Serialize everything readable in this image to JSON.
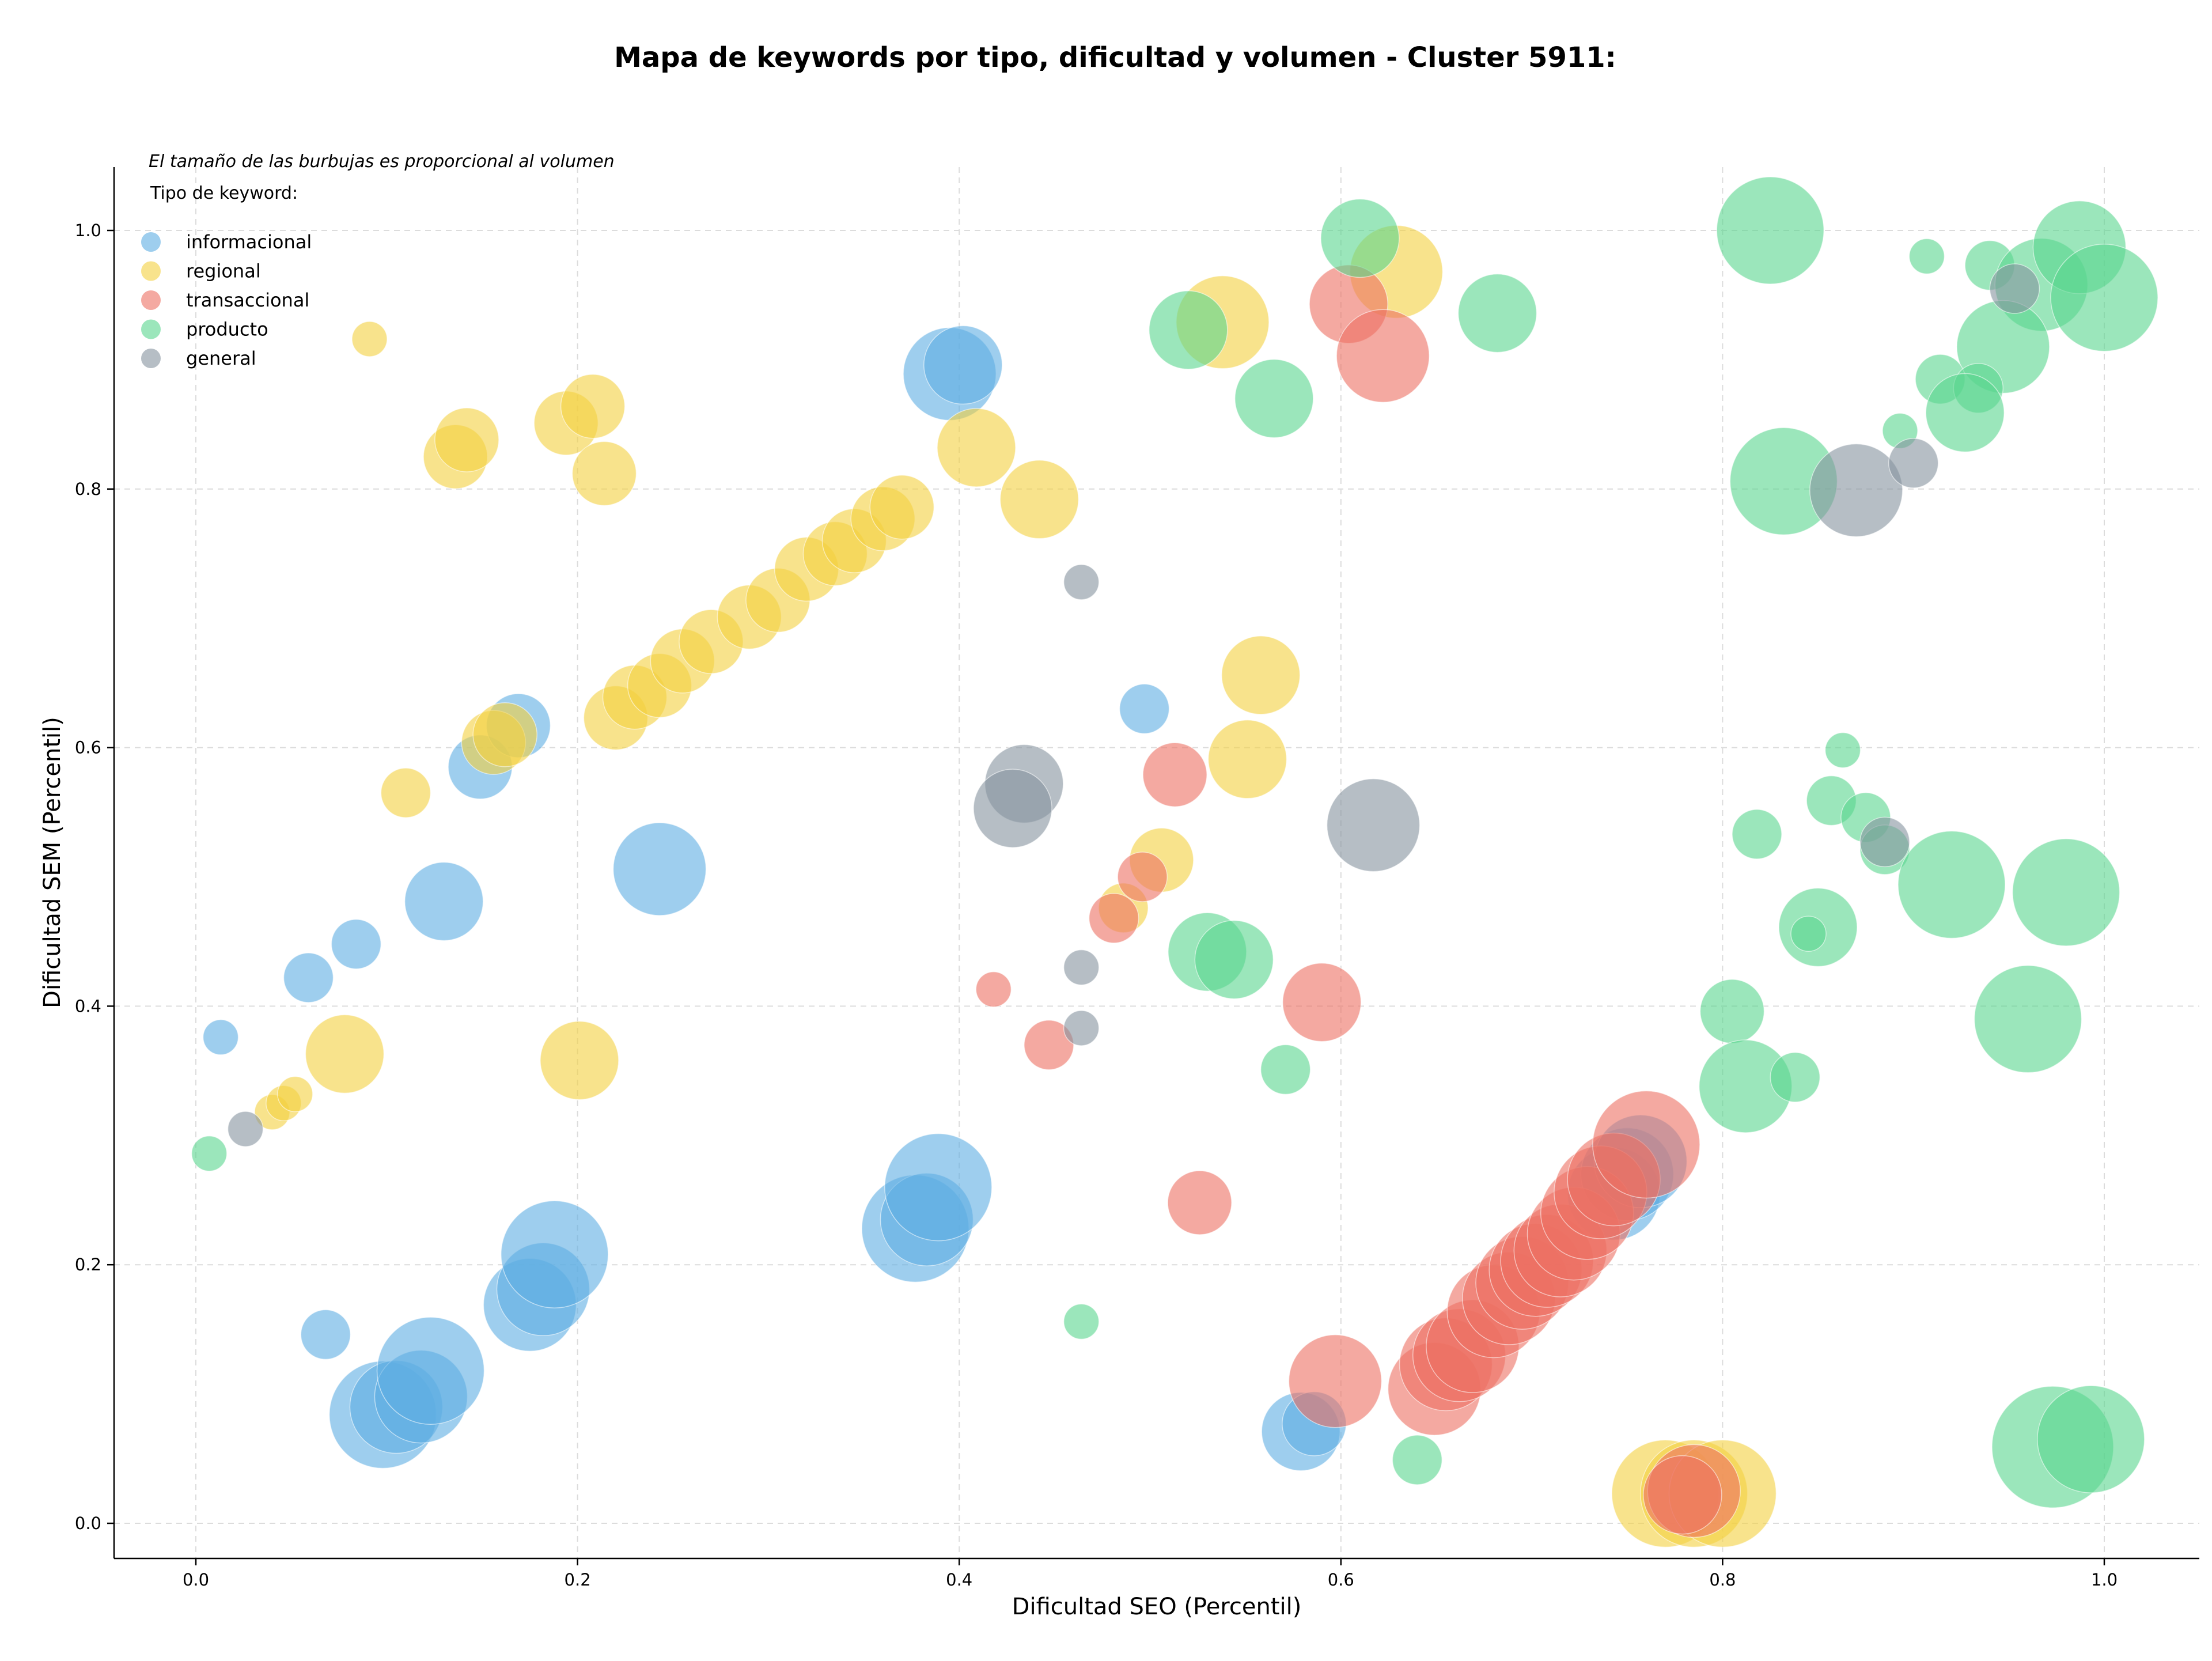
{
  "chart_data": {
    "type": "scatter",
    "title": "Mapa de keywords por tipo, dificultad y volumen - Cluster 5911:",
    "xlabel": "Dificultad SEO (Percentil)",
    "ylabel": "Dificultad SEM (Percentil)",
    "xlim": [
      -0.04,
      1.05
    ],
    "ylim": [
      -0.025,
      1.05
    ],
    "xticks": [
      0.0,
      0.2,
      0.4,
      0.6,
      0.8,
      1.0
    ],
    "xtick_labels": [
      "0.0",
      "0.2",
      "0.4",
      "0.6",
      "0.8",
      "1.0"
    ],
    "yticks": [
      0.0,
      0.2,
      0.4,
      0.6,
      0.8,
      1.0
    ],
    "ytick_labels": [
      "0.0",
      "0.2",
      "0.4",
      "0.6",
      "0.8",
      "1.0"
    ],
    "grid": true,
    "size_note": "El tamaño de las burbujas es proporcional al volumen",
    "legend_title": "Tipo de keyword:",
    "legend_position": "top-left",
    "series": [
      {
        "name": "informacional",
        "color": "#5DADE2",
        "points": [
          [
            0.013,
            0.376,
            1
          ],
          [
            0.059,
            0.422,
            2
          ],
          [
            0.084,
            0.448,
            2
          ],
          [
            0.13,
            0.481,
            4
          ],
          [
            0.149,
            0.585,
            3
          ],
          [
            0.169,
            0.617,
            3
          ],
          [
            0.243,
            0.506,
            5
          ],
          [
            0.395,
            0.889,
            5
          ],
          [
            0.402,
            0.896,
            4
          ],
          [
            0.497,
            0.63,
            2
          ],
          [
            0.068,
            0.146,
            2
          ],
          [
            0.098,
            0.084,
            6
          ],
          [
            0.105,
            0.09,
            5
          ],
          [
            0.118,
            0.098,
            5
          ],
          [
            0.123,
            0.118,
            6
          ],
          [
            0.175,
            0.169,
            5
          ],
          [
            0.182,
            0.181,
            5
          ],
          [
            0.188,
            0.208,
            6
          ],
          [
            0.377,
            0.228,
            6
          ],
          [
            0.383,
            0.235,
            5
          ],
          [
            0.389,
            0.26,
            6
          ],
          [
            0.579,
            0.071,
            4
          ],
          [
            0.586,
            0.077,
            3
          ],
          [
            0.743,
            0.255,
            5
          ],
          [
            0.75,
            0.27,
            5
          ],
          [
            0.757,
            0.28,
            5
          ]
        ]
      },
      {
        "name": "regional",
        "color": "#F4D03F",
        "points": [
          [
            0.091,
            0.916,
            1
          ],
          [
            0.136,
            0.825,
            3
          ],
          [
            0.142,
            0.838,
            3
          ],
          [
            0.194,
            0.851,
            3
          ],
          [
            0.208,
            0.864,
            3
          ],
          [
            0.214,
            0.812,
            3
          ],
          [
            0.11,
            0.565,
            2
          ],
          [
            0.156,
            0.604,
            3
          ],
          [
            0.162,
            0.61,
            3
          ],
          [
            0.22,
            0.623,
            3
          ],
          [
            0.23,
            0.639,
            3
          ],
          [
            0.243,
            0.648,
            3
          ],
          [
            0.255,
            0.667,
            3
          ],
          [
            0.27,
            0.682,
            3
          ],
          [
            0.29,
            0.701,
            3
          ],
          [
            0.305,
            0.714,
            3
          ],
          [
            0.32,
            0.738,
            3
          ],
          [
            0.335,
            0.75,
            3
          ],
          [
            0.345,
            0.76,
            3
          ],
          [
            0.36,
            0.777,
            3
          ],
          [
            0.37,
            0.786,
            3
          ],
          [
            0.409,
            0.832,
            4
          ],
          [
            0.442,
            0.792,
            4
          ],
          [
            0.558,
            0.656,
            4
          ],
          [
            0.551,
            0.591,
            4
          ],
          [
            0.506,
            0.513,
            3
          ],
          [
            0.486,
            0.476,
            2
          ],
          [
            0.04,
            0.318,
            1
          ],
          [
            0.046,
            0.325,
            1
          ],
          [
            0.052,
            0.332,
            1
          ],
          [
            0.078,
            0.363,
            4
          ],
          [
            0.201,
            0.358,
            4
          ],
          [
            0.538,
            0.929,
            5
          ],
          [
            0.629,
            0.968,
            5
          ],
          [
            0.77,
            0.023,
            6
          ],
          [
            0.785,
            0.023,
            6
          ],
          [
            0.8,
            0.023,
            6
          ]
        ]
      },
      {
        "name": "transaccional",
        "color": "#EC7063",
        "points": [
          [
            0.604,
            0.943,
            4
          ],
          [
            0.622,
            0.903,
            5
          ],
          [
            0.513,
            0.579,
            3
          ],
          [
            0.496,
            0.5,
            2
          ],
          [
            0.481,
            0.468,
            2
          ],
          [
            0.418,
            0.413,
            1
          ],
          [
            0.447,
            0.37,
            2
          ],
          [
            0.59,
            0.403,
            4
          ],
          [
            0.526,
            0.248,
            3
          ],
          [
            0.597,
            0.11,
            5
          ],
          [
            0.649,
            0.104,
            5
          ],
          [
            0.655,
            0.123,
            5
          ],
          [
            0.662,
            0.13,
            5
          ],
          [
            0.669,
            0.137,
            5
          ],
          [
            0.68,
            0.164,
            5
          ],
          [
            0.688,
            0.174,
            5
          ],
          [
            0.695,
            0.186,
            5
          ],
          [
            0.702,
            0.196,
            5
          ],
          [
            0.708,
            0.203,
            5
          ],
          [
            0.715,
            0.211,
            5
          ],
          [
            0.722,
            0.224,
            5
          ],
          [
            0.729,
            0.24,
            5
          ],
          [
            0.736,
            0.256,
            5
          ],
          [
            0.743,
            0.266,
            5
          ],
          [
            0.76,
            0.293,
            6
          ],
          [
            0.785,
            0.025,
            5
          ],
          [
            0.779,
            0.022,
            4
          ]
        ]
      },
      {
        "name": "producto",
        "color": "#58D68D",
        "points": [
          [
            0.61,
            0.994,
            4
          ],
          [
            0.52,
            0.923,
            4
          ],
          [
            0.565,
            0.87,
            4
          ],
          [
            0.682,
            0.936,
            4
          ],
          [
            0.825,
            1.0,
            6
          ],
          [
            0.832,
            0.806,
            6
          ],
          [
            0.907,
            0.98,
            1
          ],
          [
            0.94,
            0.973,
            2
          ],
          [
            0.967,
            0.958,
            5
          ],
          [
            0.987,
            0.987,
            5
          ],
          [
            1.0,
            0.948,
            6
          ],
          [
            0.947,
            0.91,
            5
          ],
          [
            0.914,
            0.885,
            2
          ],
          [
            0.934,
            0.878,
            2
          ],
          [
            0.927,
            0.859,
            4
          ],
          [
            0.893,
            0.845,
            1
          ],
          [
            0.863,
            0.598,
            1
          ],
          [
            0.857,
            0.559,
            2
          ],
          [
            0.875,
            0.546,
            2
          ],
          [
            0.818,
            0.533,
            2
          ],
          [
            0.885,
            0.521,
            2
          ],
          [
            0.92,
            0.494,
            6
          ],
          [
            0.98,
            0.488,
            6
          ],
          [
            0.85,
            0.461,
            4
          ],
          [
            0.845,
            0.456,
            1
          ],
          [
            0.96,
            0.39,
            6
          ],
          [
            0.805,
            0.396,
            3
          ],
          [
            0.812,
            0.338,
            5
          ],
          [
            0.838,
            0.345,
            2
          ],
          [
            0.53,
            0.442,
            4
          ],
          [
            0.544,
            0.436,
            4
          ],
          [
            0.571,
            0.351,
            2
          ],
          [
            0.007,
            0.286,
            1
          ],
          [
            0.464,
            0.156,
            1
          ],
          [
            0.64,
            0.049,
            2
          ],
          [
            0.973,
            0.059,
            7
          ],
          [
            0.993,
            0.065,
            6
          ]
        ]
      },
      {
        "name": "general",
        "color": "#85929E",
        "points": [
          [
            0.953,
            0.955,
            2
          ],
          [
            0.87,
            0.799,
            5
          ],
          [
            0.9,
            0.82,
            2
          ],
          [
            0.464,
            0.728,
            1
          ],
          [
            0.434,
            0.572,
            4
          ],
          [
            0.428,
            0.553,
            4
          ],
          [
            0.617,
            0.54,
            5
          ],
          [
            0.885,
            0.527,
            2
          ],
          [
            0.464,
            0.43,
            1
          ],
          [
            0.464,
            0.383,
            1
          ],
          [
            0.026,
            0.305,
            1
          ]
        ]
      }
    ]
  }
}
